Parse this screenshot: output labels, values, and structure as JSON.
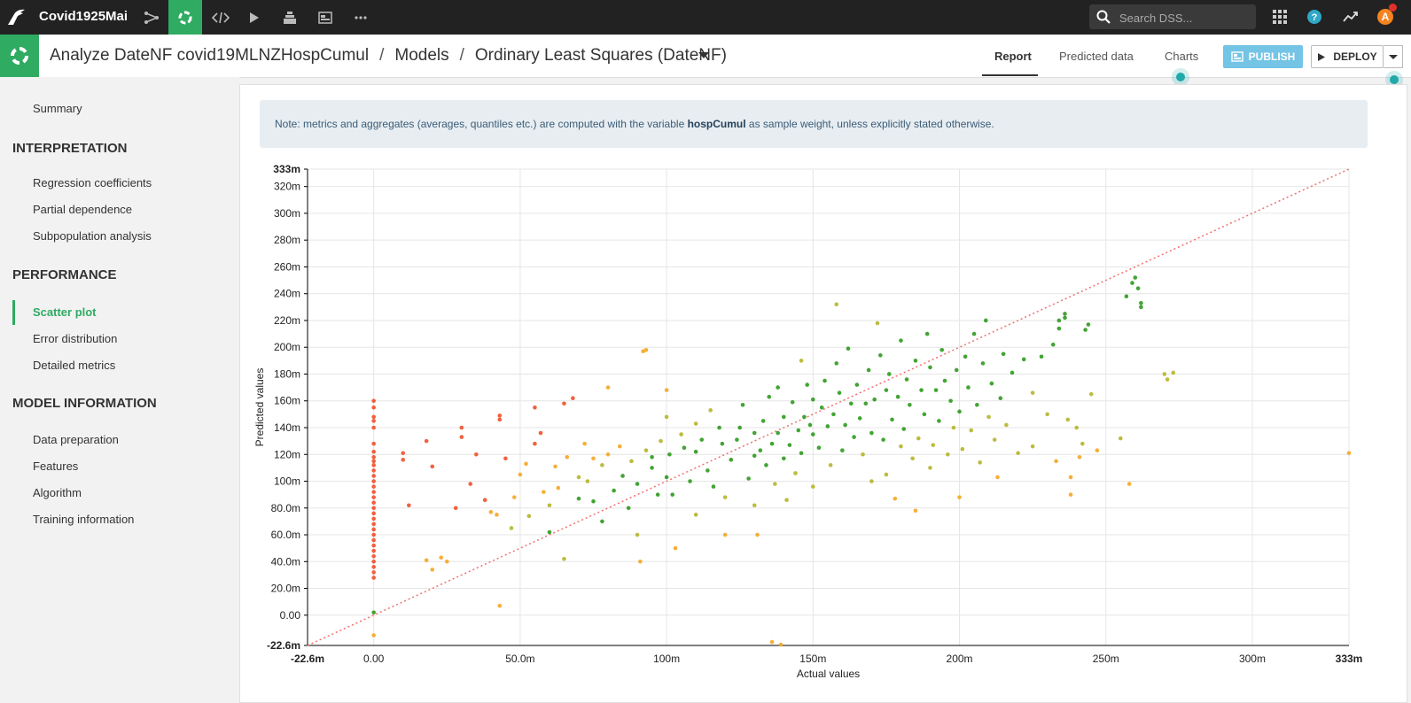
{
  "topbar": {
    "project_name": "Covid1925Mai",
    "search_placeholder": "Search DSS...",
    "avatar_letter": "A"
  },
  "breadcrumb": {
    "part1": "Analyze DateNF covid19MLNZHospCumul",
    "part2": "Models",
    "part3": "Ordinary Least Squares (DateNF)"
  },
  "tabs": [
    "Report",
    "Predicted data",
    "Charts"
  ],
  "buttons": {
    "publish": "PUBLISH",
    "deploy": "DEPLOY"
  },
  "sidebar": {
    "summary": "Summary",
    "interpretation": {
      "title": "INTERPRETATION",
      "items": [
        "Regression coefficients",
        "Partial dependence",
        "Subpopulation analysis"
      ]
    },
    "performance": {
      "title": "PERFORMANCE",
      "items": [
        "Scatter plot",
        "Error distribution",
        "Detailed metrics"
      ]
    },
    "model_information": {
      "title": "MODEL INFORMATION",
      "items": [
        "Data preparation",
        "Features",
        "Algorithm",
        "Training information"
      ]
    }
  },
  "note": {
    "before": "Note: metrics and aggregates (averages, quantiles etc.) are computed with the variable ",
    "variable": "hospCumul",
    "after": " as sample weight, unless explicitly stated otherwise."
  },
  "colors": {
    "accent_green": "#2fab62",
    "identity_line": "#f07070",
    "point_good": "#2e9a1e",
    "point_mid": "#b5b52a",
    "point_warn": "#f5a623",
    "point_bad": "#f0502a"
  },
  "chart_data": {
    "type": "scatter",
    "xlabel": "Actual values",
    "ylabel": "Predicted values",
    "xlim": [
      -22.6,
      333
    ],
    "ylim": [
      -22.6,
      333
    ],
    "x_ticks": [
      "-22.6m",
      "0.00",
      "50.0m",
      "100m",
      "150m",
      "200m",
      "250m",
      "300m",
      "333m"
    ],
    "x_tick_values": [
      -22.6,
      0,
      50,
      100,
      150,
      200,
      250,
      300,
      333
    ],
    "y_ticks": [
      "-22.6m",
      "0.00",
      "20.0m",
      "40.0m",
      "60.0m",
      "80.0m",
      "100m",
      "120m",
      "140m",
      "160m",
      "180m",
      "200m",
      "220m",
      "240m",
      "260m",
      "280m",
      "300m",
      "320m",
      "333m"
    ],
    "y_tick_values": [
      -22.6,
      0,
      20,
      40,
      60,
      80,
      100,
      120,
      140,
      160,
      180,
      200,
      220,
      240,
      260,
      280,
      300,
      320,
      333
    ],
    "identity_line": true,
    "points": [
      [
        0,
        160
      ],
      [
        0,
        155
      ],
      [
        0,
        148
      ],
      [
        0,
        145
      ],
      [
        0,
        140
      ],
      [
        0,
        128
      ],
      [
        0,
        122
      ],
      [
        0,
        118
      ],
      [
        0,
        115
      ],
      [
        0,
        112
      ],
      [
        0,
        108
      ],
      [
        0,
        104
      ],
      [
        0,
        100
      ],
      [
        0,
        96
      ],
      [
        0,
        92
      ],
      [
        0,
        88
      ],
      [
        0,
        84
      ],
      [
        0,
        80
      ],
      [
        0,
        76
      ],
      [
        0,
        72
      ],
      [
        0,
        68
      ],
      [
        0,
        64
      ],
      [
        0,
        60
      ],
      [
        0,
        56
      ],
      [
        0,
        52
      ],
      [
        0,
        48
      ],
      [
        0,
        44
      ],
      [
        0,
        40
      ],
      [
        0,
        36
      ],
      [
        0,
        32
      ],
      [
        0,
        28
      ],
      [
        0,
        2
      ],
      [
        0,
        -15
      ],
      [
        10,
        121
      ],
      [
        10,
        116
      ],
      [
        12,
        82
      ],
      [
        18,
        130
      ],
      [
        18,
        41
      ],
      [
        20,
        111
      ],
      [
        20,
        34
      ],
      [
        23,
        43
      ],
      [
        25,
        40
      ],
      [
        28,
        80
      ],
      [
        30,
        140
      ],
      [
        30,
        133
      ],
      [
        33,
        98
      ],
      [
        35,
        120
      ],
      [
        38,
        86
      ],
      [
        40,
        77
      ],
      [
        42,
        75
      ],
      [
        43,
        149
      ],
      [
        43,
        146
      ],
      [
        43,
        7
      ],
      [
        45,
        117
      ],
      [
        47,
        65
      ],
      [
        48,
        88
      ],
      [
        50,
        105
      ],
      [
        52,
        113
      ],
      [
        53,
        74
      ],
      [
        55,
        155
      ],
      [
        55,
        128
      ],
      [
        57,
        136
      ],
      [
        58,
        92
      ],
      [
        60,
        82
      ],
      [
        60,
        62
      ],
      [
        62,
        111
      ],
      [
        63,
        95
      ],
      [
        65,
        158
      ],
      [
        65,
        42
      ],
      [
        66,
        118
      ],
      [
        68,
        162
      ],
      [
        70,
        103
      ],
      [
        70,
        87
      ],
      [
        72,
        128
      ],
      [
        73,
        100
      ],
      [
        75,
        85
      ],
      [
        75,
        117
      ],
      [
        78,
        112
      ],
      [
        78,
        70
      ],
      [
        80,
        170
      ],
      [
        80,
        120
      ],
      [
        82,
        93
      ],
      [
        84,
        126
      ],
      [
        85,
        104
      ],
      [
        87,
        80
      ],
      [
        88,
        115
      ],
      [
        90,
        98
      ],
      [
        90,
        60
      ],
      [
        91,
        40
      ],
      [
        92,
        197
      ],
      [
        93,
        198
      ],
      [
        93,
        123
      ],
      [
        95,
        118
      ],
      [
        95,
        110
      ],
      [
        97,
        90
      ],
      [
        98,
        130
      ],
      [
        100,
        148
      ],
      [
        100,
        103
      ],
      [
        100,
        168
      ],
      [
        101,
        120
      ],
      [
        102,
        90
      ],
      [
        103,
        50
      ],
      [
        105,
        135
      ],
      [
        106,
        125
      ],
      [
        108,
        100
      ],
      [
        110,
        143
      ],
      [
        110,
        122
      ],
      [
        110,
        75
      ],
      [
        112,
        131
      ],
      [
        114,
        108
      ],
      [
        115,
        153
      ],
      [
        116,
        96
      ],
      [
        118,
        140
      ],
      [
        119,
        128
      ],
      [
        120,
        88
      ],
      [
        120,
        60
      ],
      [
        122,
        116
      ],
      [
        124,
        131
      ],
      [
        125,
        140
      ],
      [
        126,
        157
      ],
      [
        128,
        102
      ],
      [
        130,
        136
      ],
      [
        130,
        119
      ],
      [
        130,
        82
      ],
      [
        131,
        60
      ],
      [
        132,
        123
      ],
      [
        133,
        145
      ],
      [
        134,
        112
      ],
      [
        135,
        163
      ],
      [
        136,
        128
      ],
      [
        137,
        98
      ],
      [
        138,
        170
      ],
      [
        138,
        136
      ],
      [
        140,
        117
      ],
      [
        140,
        148
      ],
      [
        141,
        86
      ],
      [
        142,
        127
      ],
      [
        143,
        159
      ],
      [
        144,
        106
      ],
      [
        145,
        138
      ],
      [
        146,
        190
      ],
      [
        146,
        121
      ],
      [
        147,
        148
      ],
      [
        148,
        172
      ],
      [
        149,
        142
      ],
      [
        150,
        96
      ],
      [
        150,
        161
      ],
      [
        150,
        135
      ],
      [
        152,
        125
      ],
      [
        153,
        155
      ],
      [
        154,
        175
      ],
      [
        155,
        141
      ],
      [
        156,
        112
      ],
      [
        157,
        150
      ],
      [
        158,
        232
      ],
      [
        158,
        188
      ],
      [
        159,
        166
      ],
      [
        160,
        123
      ],
      [
        161,
        142
      ],
      [
        162,
        199
      ],
      [
        163,
        158
      ],
      [
        164,
        133
      ],
      [
        165,
        172
      ],
      [
        166,
        147
      ],
      [
        167,
        120
      ],
      [
        168,
        158
      ],
      [
        169,
        183
      ],
      [
        170,
        100
      ],
      [
        170,
        136
      ],
      [
        171,
        161
      ],
      [
        172,
        218
      ],
      [
        173,
        194
      ],
      [
        174,
        131
      ],
      [
        175,
        168
      ],
      [
        175,
        105
      ],
      [
        176,
        180
      ],
      [
        177,
        146
      ],
      [
        178,
        87
      ],
      [
        179,
        163
      ],
      [
        180,
        126
      ],
      [
        180,
        205
      ],
      [
        181,
        139
      ],
      [
        182,
        176
      ],
      [
        183,
        157
      ],
      [
        184,
        117
      ],
      [
        185,
        78
      ],
      [
        185,
        190
      ],
      [
        186,
        132
      ],
      [
        187,
        168
      ],
      [
        188,
        150
      ],
      [
        189,
        210
      ],
      [
        190,
        185
      ],
      [
        190,
        110
      ],
      [
        191,
        127
      ],
      [
        192,
        168
      ],
      [
        193,
        145
      ],
      [
        194,
        198
      ],
      [
        195,
        175
      ],
      [
        196,
        120
      ],
      [
        197,
        160
      ],
      [
        198,
        140
      ],
      [
        199,
        183
      ],
      [
        200,
        152
      ],
      [
        200,
        88
      ],
      [
        201,
        124
      ],
      [
        202,
        193
      ],
      [
        203,
        170
      ],
      [
        204,
        138
      ],
      [
        205,
        210
      ],
      [
        206,
        157
      ],
      [
        207,
        114
      ],
      [
        208,
        188
      ],
      [
        209,
        220
      ],
      [
        210,
        148
      ],
      [
        211,
        173
      ],
      [
        212,
        131
      ],
      [
        213,
        103
      ],
      [
        214,
        162
      ],
      [
        215,
        195
      ],
      [
        216,
        142
      ],
      [
        218,
        181
      ],
      [
        220,
        121
      ],
      [
        222,
        191
      ],
      [
        225,
        166
      ],
      [
        225,
        126
      ],
      [
        228,
        193
      ],
      [
        230,
        150
      ],
      [
        232,
        202
      ],
      [
        233,
        115
      ],
      [
        234,
        214
      ],
      [
        234,
        220
      ],
      [
        236,
        222
      ],
      [
        236,
        225
      ],
      [
        237,
        146
      ],
      [
        238,
        103
      ],
      [
        238,
        90
      ],
      [
        240,
        140
      ],
      [
        241,
        118
      ],
      [
        242,
        128
      ],
      [
        243,
        213
      ],
      [
        244,
        217
      ],
      [
        245,
        165
      ],
      [
        247,
        123
      ],
      [
        255,
        132
      ],
      [
        257,
        238
      ],
      [
        258,
        98
      ],
      [
        259,
        248
      ],
      [
        260,
        252
      ],
      [
        261,
        244
      ],
      [
        262,
        233
      ],
      [
        262,
        230
      ],
      [
        270,
        180
      ],
      [
        271,
        176
      ],
      [
        273,
        181
      ],
      [
        333,
        121
      ],
      [
        136,
        -20
      ],
      [
        139,
        -22
      ]
    ]
  }
}
